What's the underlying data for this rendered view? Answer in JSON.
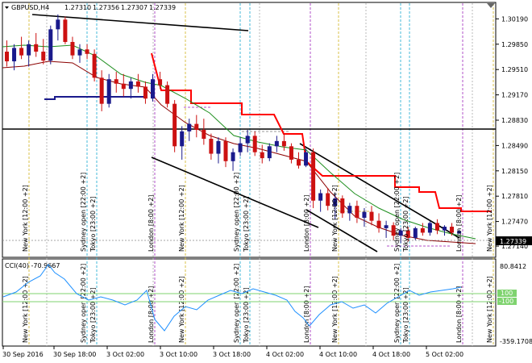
{
  "title_bar": {
    "symbol": "GBPUSD,H4",
    "open": "1.27310",
    "high": "1.27356",
    "low": "1.27307",
    "close": "1.27339"
  },
  "price_axis": {
    "labels": [
      "1.30190",
      "1.29850",
      "1.29510",
      "1.29170",
      "1.28830",
      "1.28490",
      "1.28150",
      "1.27810",
      "1.27470",
      "1.27140"
    ],
    "current_price": "1.27339",
    "ymin": 1.27,
    "ymax": 1.304
  },
  "cci": {
    "label": "CCI(40) -70.9667",
    "axis_top": "80.8412",
    "axis_bottom": "-359.1708",
    "level_plus": "100",
    "level_minus": "-100"
  },
  "time_axis": [
    "30 Sep 2016",
    "30 Sep 18:00",
    "3 Oct 02:00",
    "3 Oct 10:00",
    "3 Oct 18:00",
    "4 Oct 02:00",
    "4 Oct 10:00",
    "4 Oct 18:00",
    "5 Oct 02:00"
  ],
  "session_labels": [
    "New York  [12:00 +2]",
    "Sydney open  [22:00 +2]",
    "Tokyo  [23:00 +2]",
    "London  [8:00 +2]",
    "New York  [12:00 +2]",
    "Sydney open  [22:00 +2]",
    "Tokyo  [23:00 +2]",
    "London  [8:00 +2]",
    "New York  [12:00 +2]",
    "Sydney open  [22:00 +2]",
    "Tokyo  [23:00 +2]",
    "London  [8:00 +2]",
    "New York  [12:00 +2]"
  ],
  "colors": {
    "bull": "#1a1a8c",
    "bear": "#cc1111",
    "stop_line": "#ff0000",
    "ma_green": "#1f8f1f",
    "ma_red": "#8b0000",
    "cci_line": "#1e90ff",
    "level_line": "#7fd36f",
    "price_tag": "#000000"
  },
  "chart_data": {
    "type": "candlestick",
    "candles": [
      [
        1.2975,
        1.299,
        1.2955,
        1.2962
      ],
      [
        1.2962,
        1.2985,
        1.295,
        1.298
      ],
      [
        1.298,
        1.2995,
        1.2965,
        1.297
      ],
      [
        1.297,
        1.299,
        1.2955,
        1.2985
      ],
      [
        1.2985,
        1.3,
        1.2968,
        1.2975
      ],
      [
        1.2975,
        1.2992,
        1.2958,
        1.2963
      ],
      [
        1.2963,
        1.301,
        1.2958,
        1.3005
      ],
      [
        1.3005,
        1.3025,
        1.299,
        1.3018
      ],
      [
        1.3018,
        1.3022,
        1.2985,
        1.2988
      ],
      [
        1.2988,
        1.2995,
        1.2965,
        1.297
      ],
      [
        1.297,
        1.2985,
        1.296,
        1.2978
      ],
      [
        1.2978,
        1.2985,
        1.2965,
        1.2972
      ],
      [
        1.2972,
        1.2978,
        1.2935,
        1.294
      ],
      [
        1.294,
        1.295,
        1.2895,
        1.2905
      ],
      [
        1.2905,
        1.2945,
        1.29,
        1.2938
      ],
      [
        1.2938,
        1.2948,
        1.292,
        1.2932
      ],
      [
        1.2932,
        1.2945,
        1.2915,
        1.2925
      ],
      [
        1.2925,
        1.294,
        1.2912,
        1.2935
      ],
      [
        1.2935,
        1.2945,
        1.292,
        1.2928
      ],
      [
        1.2928,
        1.2935,
        1.2905,
        1.2912
      ],
      [
        1.2912,
        1.2945,
        1.2908,
        1.2938
      ],
      [
        1.2938,
        1.2948,
        1.2925,
        1.293
      ],
      [
        1.293,
        1.2935,
        1.29,
        1.2905
      ],
      [
        1.2905,
        1.291,
        1.284,
        1.2848
      ],
      [
        1.2848,
        1.2875,
        1.283,
        1.2868
      ],
      [
        1.2868,
        1.2885,
        1.2855,
        1.2878
      ],
      [
        1.2878,
        1.289,
        1.286,
        1.287
      ],
      [
        1.287,
        1.2885,
        1.285,
        1.2858
      ],
      [
        1.2858,
        1.2865,
        1.283,
        1.2838
      ],
      [
        1.2838,
        1.286,
        1.2825,
        1.2855
      ],
      [
        1.2855,
        1.286,
        1.282,
        1.2828
      ],
      [
        1.2828,
        1.2845,
        1.2815,
        1.284
      ],
      [
        1.284,
        1.286,
        1.2835,
        1.2852
      ],
      [
        1.2852,
        1.287,
        1.284,
        1.2862
      ],
      [
        1.2862,
        1.2868,
        1.2835,
        1.284
      ],
      [
        1.284,
        1.285,
        1.2825,
        1.2832
      ],
      [
        1.2832,
        1.2852,
        1.2828,
        1.2848
      ],
      [
        1.2848,
        1.2862,
        1.284,
        1.2855
      ],
      [
        1.2855,
        1.2865,
        1.2842,
        1.2848
      ],
      [
        1.2848,
        1.2852,
        1.2825,
        1.283
      ],
      [
        1.283,
        1.284,
        1.2818,
        1.2822
      ],
      [
        1.2822,
        1.2845,
        1.282,
        1.284
      ],
      [
        1.284,
        1.2845,
        1.2765,
        1.2775
      ],
      [
        1.2775,
        1.279,
        1.276,
        1.2785
      ],
      [
        1.2785,
        1.2792,
        1.2762,
        1.2768
      ],
      [
        1.2768,
        1.2785,
        1.275,
        1.2778
      ],
      [
        1.2778,
        1.2782,
        1.2752,
        1.2758
      ],
      [
        1.2758,
        1.2772,
        1.2748,
        1.2768
      ],
      [
        1.2768,
        1.2775,
        1.2745,
        1.2752
      ],
      [
        1.2752,
        1.2765,
        1.274,
        1.276
      ],
      [
        1.276,
        1.2768,
        1.2742,
        1.2748
      ],
      [
        1.2748,
        1.2758,
        1.2732,
        1.2738
      ],
      [
        1.2738,
        1.2748,
        1.2725,
        1.2742
      ],
      [
        1.2742,
        1.2746,
        1.2722,
        1.2728
      ],
      [
        1.2728,
        1.2738,
        1.2718,
        1.2735
      ],
      [
        1.2735,
        1.274,
        1.272,
        1.2725
      ],
      [
        1.2725,
        1.274,
        1.2722,
        1.2738
      ],
      [
        1.2738,
        1.2745,
        1.2728,
        1.2732
      ],
      [
        1.2732,
        1.2748,
        1.2728,
        1.2745
      ],
      [
        1.2745,
        1.275,
        1.273,
        1.2735
      ],
      [
        1.2735,
        1.2742,
        1.2728,
        1.274
      ],
      [
        1.274,
        1.2745,
        1.2728,
        1.2732
      ],
      [
        1.2731,
        1.2736,
        1.273,
        1.2734
      ]
    ]
  }
}
